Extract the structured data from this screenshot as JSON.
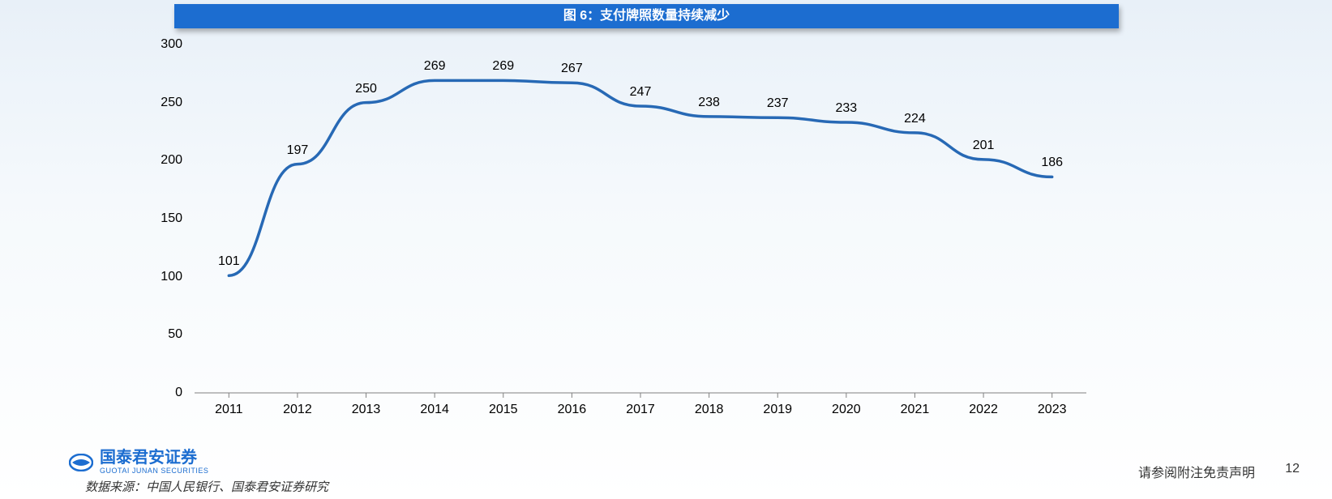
{
  "chart": {
    "title": "图 6：支付牌照数量持续减少",
    "type": "line",
    "categories": [
      "2011",
      "2012",
      "2013",
      "2014",
      "2015",
      "2016",
      "2017",
      "2018",
      "2019",
      "2020",
      "2021",
      "2022",
      "2023"
    ],
    "values": [
      101,
      197,
      250,
      269,
      269,
      267,
      247,
      238,
      237,
      233,
      224,
      201,
      186
    ],
    "ylim": [
      0,
      300
    ],
    "ytick_step": 50,
    "yticks": [
      0,
      50,
      100,
      150,
      200,
      250,
      300
    ],
    "line_color": "#2769b5",
    "line_width": 3.5,
    "axis_color": "#808080",
    "background_color": "transparent",
    "title_bg_color": "#1c6dd0",
    "title_text_color": "#ffffff",
    "title_fontsize": 16,
    "label_fontsize": 16,
    "data_label_fontsize": 16
  },
  "footer": {
    "logo_cn": "国泰君安证券",
    "logo_en": "GUOTAI JUNAN SECURITIES",
    "logo_color": "#1c6dd0",
    "source": "数据来源：中国人民银行、国泰君安证券研究",
    "disclaimer": "请参阅附注免责声明",
    "page_number": "12"
  }
}
